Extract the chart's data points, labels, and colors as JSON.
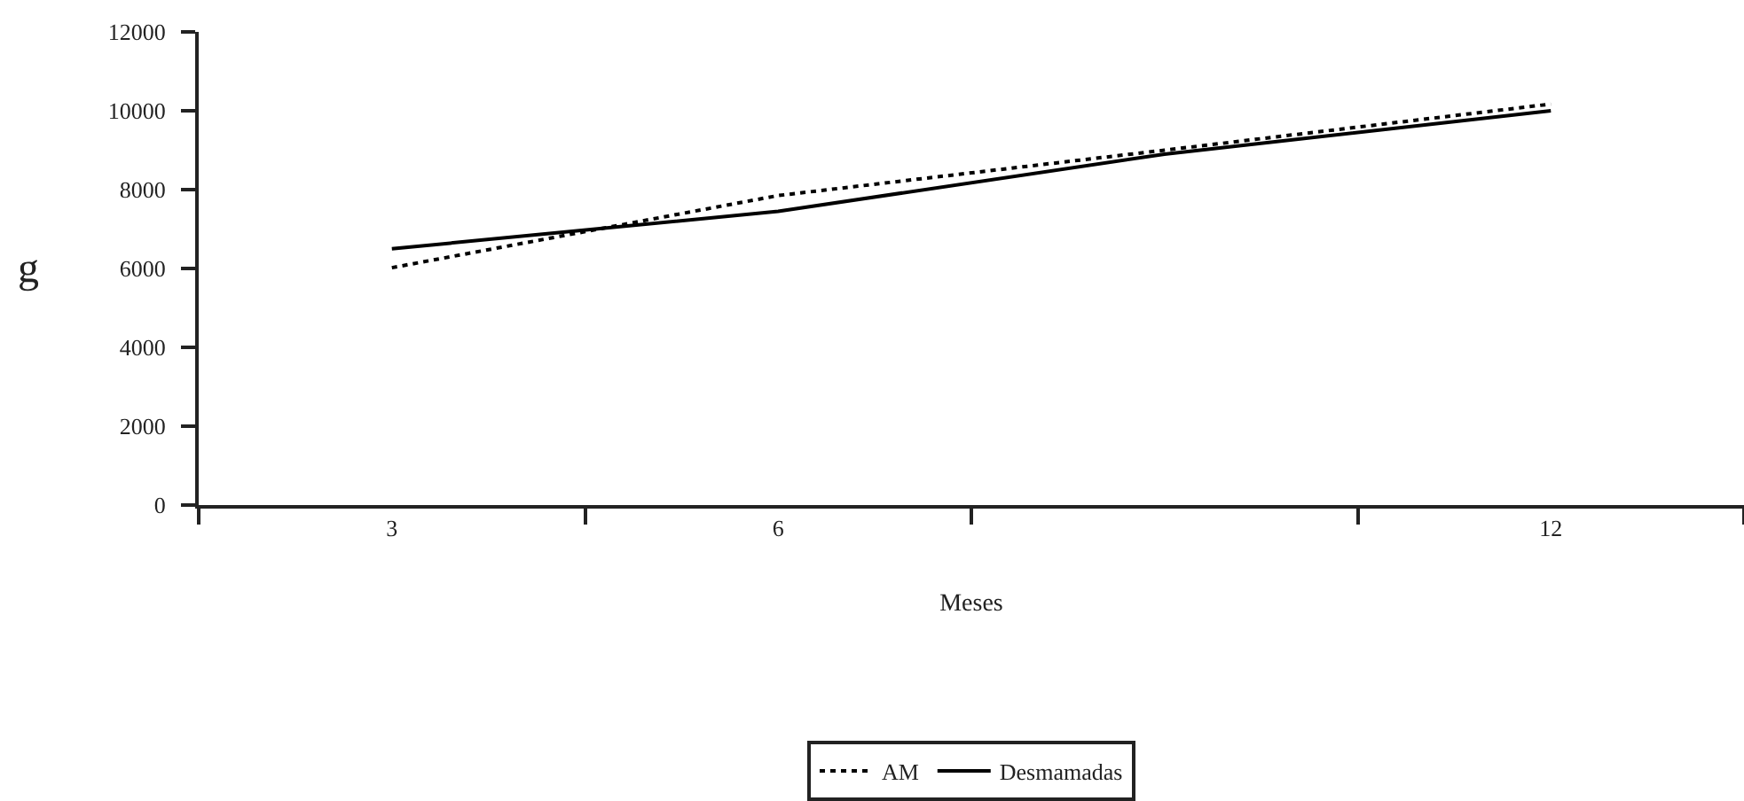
{
  "chart_data": {
    "type": "line",
    "xlabel": "Meses",
    "ylabel": "g",
    "categories": [
      "3",
      "6",
      null,
      "12"
    ],
    "series": [
      {
        "name": "AM",
        "color": "#000000",
        "line_style": "dotted",
        "values": [
          6020,
          7850,
          9000,
          10170
        ]
      },
      {
        "name": "Desmamadas",
        "color": "#000000",
        "line_style": "solid",
        "values": [
          6500,
          7450,
          8900,
          10000
        ]
      }
    ],
    "ylim": [
      0,
      12000
    ],
    "yticks": [
      0,
      2000,
      4000,
      6000,
      8000,
      10000,
      12000
    ],
    "grid": false,
    "legend": "bottom",
    "marker": "none"
  }
}
